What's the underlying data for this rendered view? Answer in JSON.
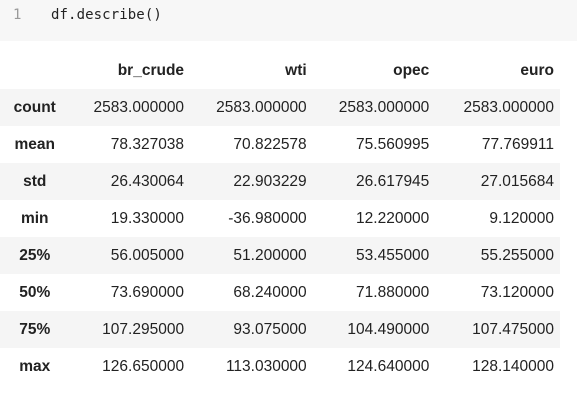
{
  "code_cell": {
    "line_number": "1",
    "code": "df.describe()"
  },
  "table": {
    "columns": [
      "br_crude",
      "wti",
      "opec",
      "euro"
    ],
    "rows": [
      {
        "label": "count",
        "values": [
          "2583.000000",
          "2583.000000",
          "2583.000000",
          "2583.000000"
        ]
      },
      {
        "label": "mean",
        "values": [
          "78.327038",
          "70.822578",
          "75.560995",
          "77.769911"
        ]
      },
      {
        "label": "std",
        "values": [
          "26.430064",
          "22.903229",
          "26.617945",
          "27.015684"
        ]
      },
      {
        "label": "min",
        "values": [
          "19.330000",
          "-36.980000",
          "12.220000",
          "9.120000"
        ]
      },
      {
        "label": "25%",
        "values": [
          "56.005000",
          "51.200000",
          "53.455000",
          "55.255000"
        ]
      },
      {
        "label": "50%",
        "values": [
          "73.690000",
          "68.240000",
          "71.880000",
          "73.120000"
        ]
      },
      {
        "label": "75%",
        "values": [
          "107.295000",
          "93.075000",
          "104.490000",
          "107.475000"
        ]
      },
      {
        "label": "max",
        "values": [
          "126.650000",
          "113.030000",
          "124.640000",
          "128.140000"
        ]
      }
    ]
  }
}
